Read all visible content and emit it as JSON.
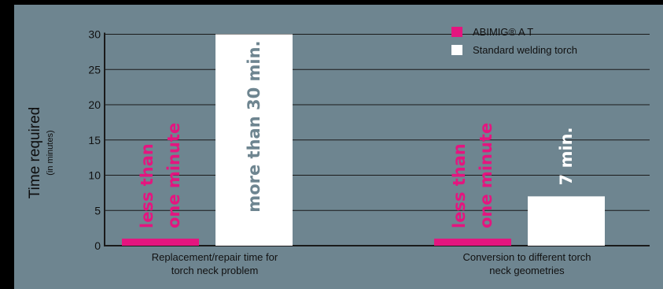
{
  "colors": {
    "background": "#6e8590",
    "frame": "#000000",
    "abimig": "#e4157f",
    "standard": "#ffffff",
    "grid": "#1a1a1a",
    "label_gray": "#6e8590"
  },
  "chart_data": {
    "type": "bar",
    "title": "",
    "ylabel": "Time required",
    "ylabel_sub": "(in minutes)",
    "ylim": [
      0,
      30
    ],
    "yticks": [
      "0",
      "5",
      "10",
      "15",
      "20",
      "25",
      "30"
    ],
    "grid": true,
    "legend_position": "top-right",
    "categories": [
      {
        "lines": [
          "Replacement/repair time for",
          "torch neck problem"
        ]
      },
      {
        "lines": [
          "Conversion to different torch",
          "neck geometries"
        ]
      }
    ],
    "series": [
      {
        "name": "ABIMIG® A T",
        "color": "#e4157f",
        "values": [
          1,
          1
        ],
        "labels": [
          [
            "less than",
            "one minute"
          ],
          [
            "less than",
            "one minute"
          ]
        ]
      },
      {
        "name": "Standard welding torch",
        "color": "#ffffff",
        "values": [
          30,
          7
        ],
        "labels": [
          [
            "more than 30 min."
          ],
          [
            "7 min."
          ]
        ]
      }
    ]
  }
}
